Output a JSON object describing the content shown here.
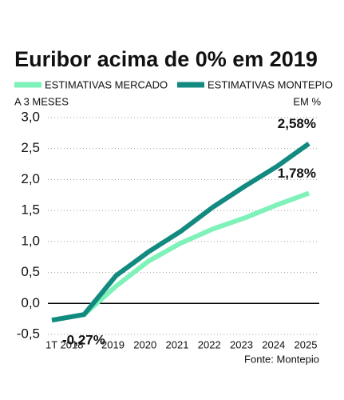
{
  "chart_data": {
    "type": "line",
    "title": "Euribor acima de 0% em 2019",
    "y_label": "A 3 MESES",
    "unit": "EM %",
    "source": "Fonte: Montepio",
    "categories": [
      "1T 2018",
      null,
      "2019",
      "2020",
      "2021",
      "2022",
      "2023",
      "2024",
      "2025"
    ],
    "series": [
      {
        "name": "ESTIMATIVAS MERCADO",
        "color": "#7ef2b8",
        "values": [
          -0.27,
          -0.18,
          0.28,
          0.68,
          0.97,
          1.2,
          1.38,
          1.59,
          1.78
        ],
        "value_labels": [
          "-0,27%",
          null,
          null,
          null,
          null,
          null,
          null,
          null,
          "1,78%"
        ]
      },
      {
        "name": "ESTIMATIVAS MONTEPIO",
        "color": "#138a80",
        "values": [
          -0.27,
          -0.18,
          0.45,
          0.83,
          1.16,
          1.55,
          1.89,
          2.21,
          2.58
        ],
        "value_labels": [
          null,
          null,
          null,
          null,
          null,
          null,
          null,
          null,
          "2,58%"
        ]
      }
    ],
    "ylim": [
      -0.5,
      3.0
    ],
    "yticks": [
      {
        "value": -0.5,
        "label": "-0,5"
      },
      {
        "value": 0,
        "label": "0,0"
      },
      {
        "value": 0.5,
        "label": "0,5"
      },
      {
        "value": 1.0,
        "label": "1,0"
      },
      {
        "value": 1.5,
        "label": "1,5"
      },
      {
        "value": 2.0,
        "label": "2,0"
      },
      {
        "value": 2.5,
        "label": "2,5"
      },
      {
        "value": 3.0,
        "label": "3,0"
      }
    ],
    "grid": true
  }
}
